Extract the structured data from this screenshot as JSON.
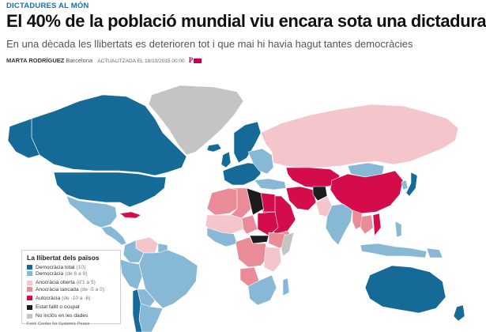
{
  "header": {
    "section": "DICTADURES AL MÓN",
    "headline": "El 40% de la població mundial viu encara sota una dictadura",
    "subtitle": "En una dècada les llibertats es deterioren tot i que mai hi havia hagut tantes democràcies",
    "author": "MARTA RODRÍGUEZ",
    "location": "Barcelona",
    "updated": "ACTUALITZADA EL 18/10/2015 00:00",
    "logo": "P"
  },
  "legend": {
    "title": "La llibertat dels països",
    "items": [
      {
        "label": "Democràcia total",
        "range": "(10)",
        "color": "#156a98"
      },
      {
        "label": "Democràcia",
        "range": "(de 6 a 9)",
        "color": "#87b8d6"
      },
      {
        "label": "Anocràcia oberta",
        "range": "(d'1 a 5)",
        "color": "#f4c6cc"
      },
      {
        "label": "Anocràcia tancada",
        "range": "(de -5 a 0)",
        "color": "#ea8b98"
      },
      {
        "label": "Autocràcia",
        "range": "(de -10 a -6)",
        "color": "#d40c4c"
      },
      {
        "label": "Estat fallit o ocupat",
        "range": "",
        "color": "#1c1c1c"
      },
      {
        "label": "No inclòs en les dades",
        "range": "",
        "color": "#c4c4c4"
      }
    ],
    "source": "Font: Center for Systemic Peace"
  },
  "colors": {
    "full_democracy": "#156a98",
    "democracy": "#87b8d6",
    "open_anocracy": "#f4c6cc",
    "closed_anocracy": "#ea8b98",
    "autocracy": "#d40c4c",
    "failed": "#1c1c1c",
    "no_data": "#c4c4c4"
  }
}
